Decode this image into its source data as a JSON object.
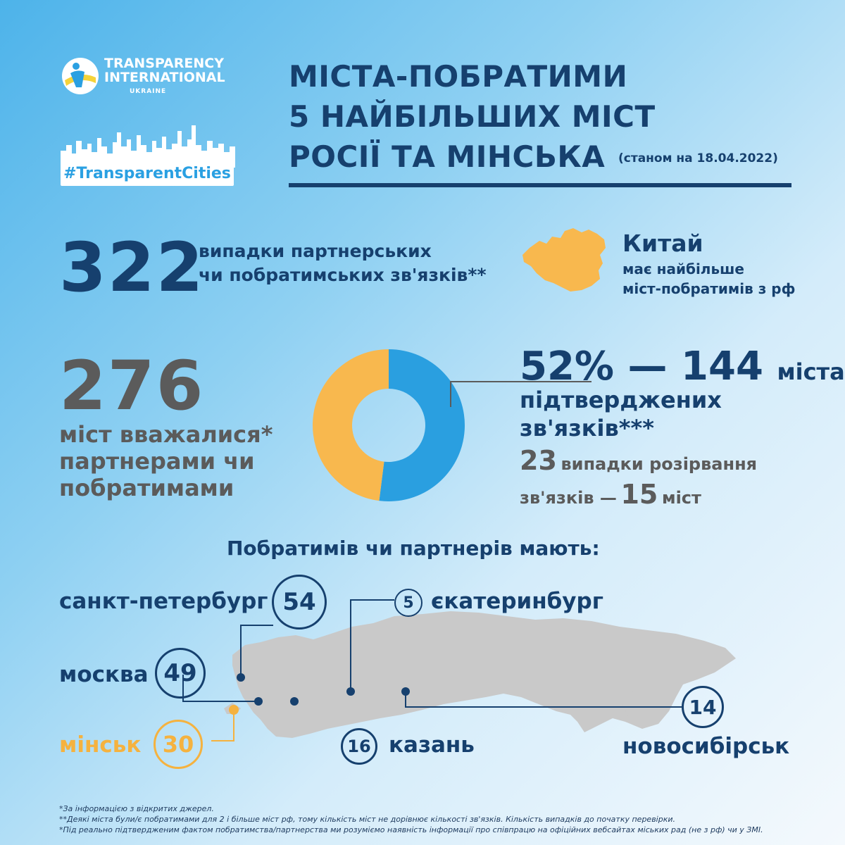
{
  "header": {
    "logo_line1": "TRANSPARENCY",
    "logo_line2": "INTERNATIONAL",
    "logo_line3": "UKRAINE",
    "hashtag": "#TransparentCities",
    "title_line1": "МІСТА-ПОБРАТИМИ",
    "title_line2": "5 НАЙБІЛЬШИХ МІСТ",
    "title_line3": "РОСІЇ ТА МІНСЬКА",
    "date_note": "(станом на 18.04.2022)"
  },
  "stat1": {
    "number": "322",
    "line1": "випадки партнерських",
    "line2": "чи побратимських зв'язків**"
  },
  "china": {
    "title": "Китай",
    "line1": "має найбільше",
    "line2": "міст-побратимів з рф"
  },
  "stat2": {
    "number": "276",
    "line1": "міст вважалися*",
    "line2": "партнерами чи",
    "line3": "побратимами"
  },
  "confirmed": {
    "percent": "52%",
    "dash": "—",
    "count": "144",
    "count_unit": "міста",
    "line2": "підтверджених",
    "line3": "зв'язків***",
    "breaks_count": "23",
    "breaks_text": "випадки розірвання",
    "breaks_line2_pre": "зв'язків —",
    "breaks_cities": "15",
    "breaks_line2_post": "міст"
  },
  "chart_data": {
    "type": "pie",
    "style": "donut",
    "values": [
      52,
      48
    ],
    "colors": [
      "#2a9fe0",
      "#f8b84e"
    ]
  },
  "cities_heading": "Побратимів чи партнерів мають:",
  "cities": {
    "spb": {
      "name": "санкт-петербург",
      "count": "54"
    },
    "ekb": {
      "name": "єкатеринбург",
      "count": "5"
    },
    "msk": {
      "name": "москва",
      "count": "49"
    },
    "nsk": {
      "name": "новосибірськ",
      "count": "14"
    },
    "minsk": {
      "name": "мінськ",
      "count": "30"
    },
    "kazan": {
      "name": "казань",
      "count": "16"
    }
  },
  "colors": {
    "dark_blue": "#16406e",
    "orange": "#f5b23f",
    "grey": "#5b5b5b",
    "blue": "#2a9fe0"
  },
  "footnotes": {
    "n1": "*За інформацією з відкритих джерел.",
    "n2": "**Деякі міста були/є побратимами для 2 і більше міст рф, тому кількість міст не дорівнює кількості зв'язків. Кількість випадків до початку перевірки.",
    "n3": "*Під реально підтвердженим фактом побратимства/партнерства ми розуміємо наявність інформації про співпрацю на офіційних вебсайтах міських рад (не з рф) чи у ЗМІ."
  }
}
